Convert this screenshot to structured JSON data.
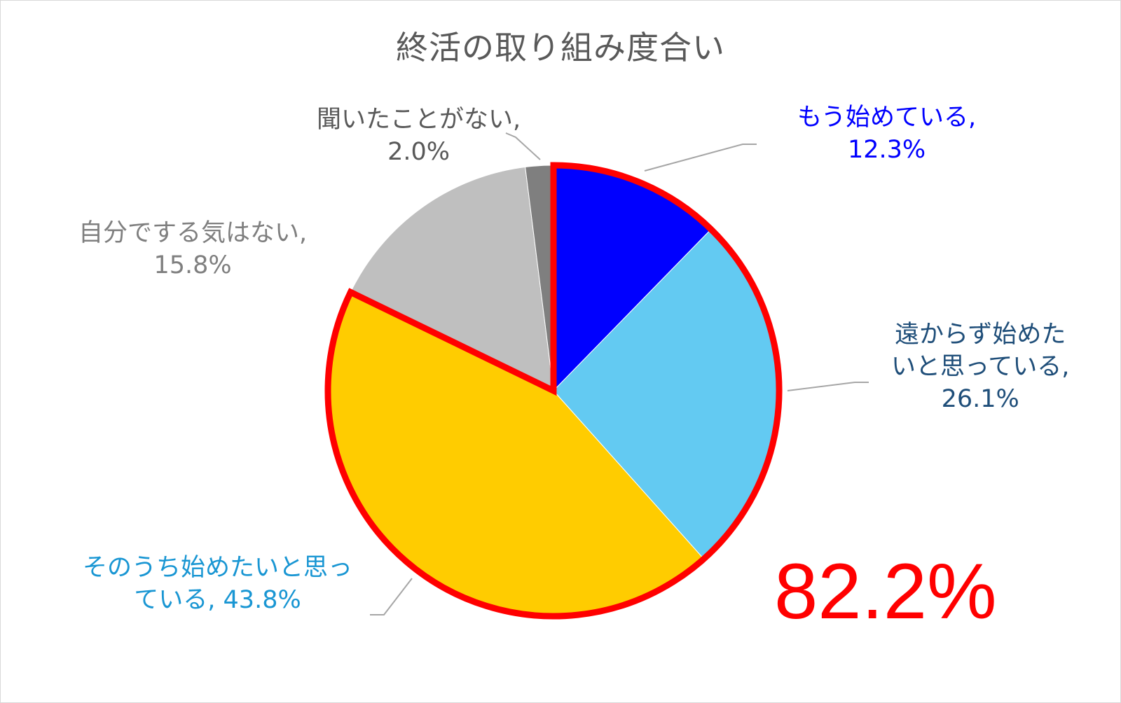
{
  "chart_data": {
    "type": "pie",
    "title": "終活の取り組み度合い",
    "start_angle_deg": 0,
    "direction": "clockwise",
    "slices": [
      {
        "label": "もう始めている",
        "value": 12.3,
        "display": "12.3%",
        "color": "#0000ff",
        "label_color": "#0000ff"
      },
      {
        "label": "遠からず始めたいと思っている",
        "value": 26.1,
        "display": "26.1%",
        "color": "#63caf2",
        "label_color": "#1f4e79"
      },
      {
        "label": "そのうち始めたいと思っている",
        "value": 43.8,
        "display": "43.8%",
        "color": "#ffcc00",
        "label_color": "#1996d3"
      },
      {
        "label": "自分でする気はない",
        "value": 15.8,
        "display": "15.8%",
        "color": "#bfbfbf",
        "label_color": "#7f7f7f"
      },
      {
        "label": "聞いたことがない",
        "value": 2.0,
        "display": "2.0%",
        "color": "#7f7f7f",
        "label_color": "#595959"
      }
    ],
    "highlight": {
      "slices": [
        0,
        1,
        2
      ],
      "outline_color": "#ff0000",
      "total_text": "82.2%"
    },
    "legend": "none"
  },
  "labels": {
    "s0": {
      "line1": "もう始めている,",
      "line2": "12.3%"
    },
    "s1": {
      "line1": "遠からず始めた",
      "line2": "いと思っている,",
      "line3": "26.1%"
    },
    "s2": {
      "line1": "そのうち始めたいと思っ",
      "line2": "ている, 43.8%"
    },
    "s3": {
      "line1": "自分でする気はない,",
      "line2": "15.8%"
    },
    "s4": {
      "line1": "聞いたことがない,",
      "line2": "2.0%"
    }
  }
}
